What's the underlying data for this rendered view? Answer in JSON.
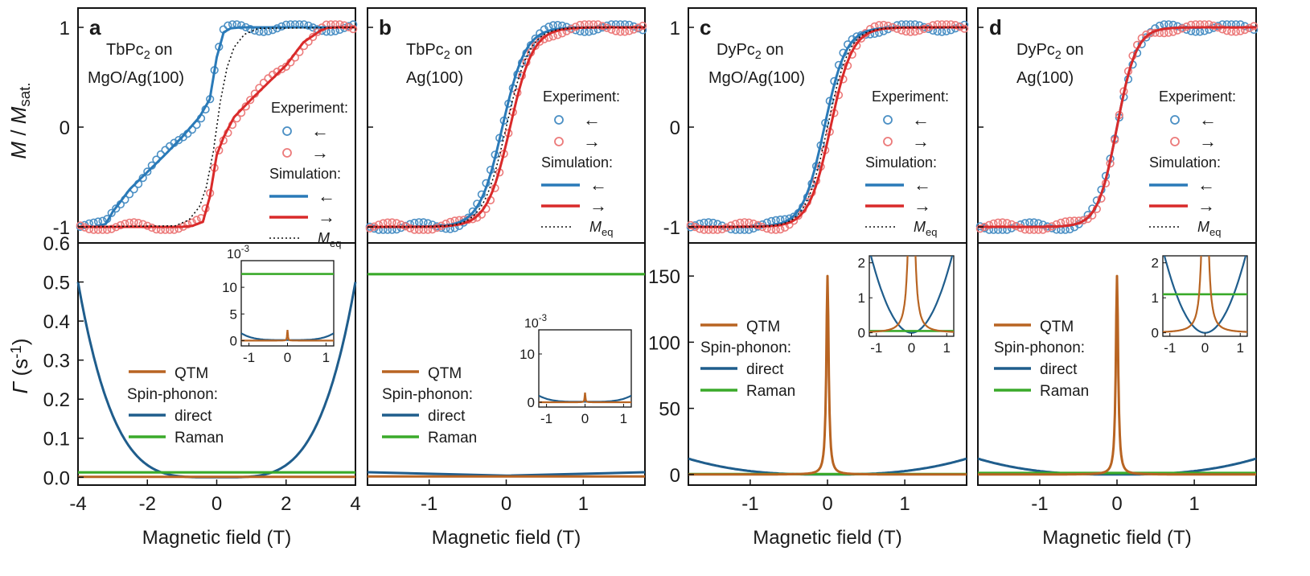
{
  "figure": {
    "xlabel": "Magnetic field (T)",
    "top_ylabel": "M / M",
    "top_ylabel_sub": "sat.",
    "bottom_ylabel": "Γ (s",
    "bottom_ylabel_sup": "-1",
    "bottom_ylabel_end": ")",
    "top_yticks": [
      "1",
      "0",
      "-1"
    ],
    "inset_exponent": "10",
    "inset_exponent_sup": "-3"
  },
  "colors": {
    "blue": "#2a7ab8",
    "red": "#d92a2a",
    "blue_marker": "#4a8fc4",
    "red_marker": "#ec7a7a",
    "qtm": "#b86422",
    "direct": "#1f5d8c",
    "raman": "#3aaa2a",
    "black": "#111111"
  },
  "legend_labels": {
    "experiment": "Experiment:",
    "simulation": "Simulation:",
    "arrow_left": "←",
    "arrow_right": "→",
    "meq": "M",
    "meq_sub": "eq",
    "qtm": "QTM",
    "spin_phonon": "Spin-phonon:",
    "direct": "direct",
    "raman": "Raman"
  },
  "chart_data": [
    {
      "panel": "a",
      "title": "TbPc",
      "title_sub": "2",
      "title_end": " on",
      "title_line2": "MgO/Ag(100)",
      "top": {
        "type": "line",
        "xlim": [
          -4,
          4
        ],
        "ylim": [
          -1.05,
          1.05
        ],
        "series": [
          {
            "name": "Simulation ←",
            "x": [
              -4,
              -3.5,
              -3.2,
              -3.0,
              -2.5,
              -2.0,
              -1.5,
              -1.0,
              -0.5,
              -0.2,
              0.0,
              0.2,
              0.4,
              0.7,
              1.0,
              4.0
            ],
            "y": [
              -1,
              -1,
              -0.97,
              -0.85,
              -0.62,
              -0.45,
              -0.28,
              -0.1,
              0.1,
              0.28,
              0.7,
              0.95,
              0.99,
              1,
              1,
              1
            ]
          },
          {
            "name": "Simulation →",
            "x": [
              -4,
              -1.0,
              -0.7,
              -0.4,
              -0.2,
              0.0,
              0.2,
              0.5,
              1.0,
              1.5,
              2.0,
              2.5,
              3.0,
              3.2,
              3.5,
              4.0
            ],
            "y": [
              -1,
              -1,
              -0.99,
              -0.95,
              -0.7,
              -0.28,
              -0.1,
              0.1,
              0.28,
              0.45,
              0.62,
              0.85,
              0.97,
              0.995,
              1,
              1
            ]
          },
          {
            "name": "M_eq",
            "x": [
              -4,
              -1.2,
              -0.8,
              -0.5,
              -0.3,
              -0.1,
              0.0,
              0.1,
              0.3,
              0.5,
              0.8,
              1.2,
              4.0
            ],
            "y": [
              -1,
              -0.99,
              -0.93,
              -0.8,
              -0.6,
              -0.25,
              0,
              0.25,
              0.6,
              0.8,
              0.93,
              0.99,
              1
            ]
          }
        ],
        "markers": "experiment circles follow the simulation curves"
      },
      "bottom": {
        "type": "line",
        "xlim": [
          -4,
          4
        ],
        "ylim": [
          -0.02,
          0.6
        ],
        "yticks": [
          "0.0",
          "0.1",
          "0.2",
          "0.3",
          "0.4",
          "0.5",
          "0.6"
        ],
        "xticks": [
          "-4",
          "-2",
          "0",
          "2",
          "4"
        ],
        "direct_max": 0.5,
        "raman_level": 0.0125,
        "qtm_level": 0.001,
        "inset": {
          "xlim": [
            -1.2,
            1.2
          ],
          "ylim": [
            -1,
            15
          ],
          "yticks": [
            "0",
            "5",
            "10"
          ],
          "xticks": [
            "-1",
            "0",
            "1"
          ],
          "raman_level": 12.5,
          "qtm_peak": 2
        }
      }
    },
    {
      "panel": "b",
      "title": "TbPc",
      "title_sub": "2",
      "title_end": " on",
      "title_line2": "Ag(100)",
      "top": {
        "type": "line",
        "xlim": [
          -1.8,
          1.8
        ],
        "ylim": [
          -1.05,
          1.05
        ],
        "series": [
          {
            "name": "Simulation ←",
            "width": 0.3,
            "shift": -0.05
          },
          {
            "name": "Simulation →",
            "width": 0.3,
            "shift": 0.05
          },
          {
            "name": "M_eq",
            "width": 0.3,
            "shift": 0
          }
        ]
      },
      "bottom": {
        "type": "line",
        "xlim": [
          -1.8,
          1.8
        ],
        "ylim": [
          -0.02,
          0.6
        ],
        "xticks": [
          "-1",
          "0",
          "1"
        ],
        "raman_level": 0.52,
        "direct_level": 0.01,
        "inset": {
          "xlim": [
            -1.2,
            1.2
          ],
          "ylim": [
            -1,
            15
          ],
          "yticks": [
            "0",
            "10"
          ],
          "xticks": [
            "-1",
            "0",
            "1"
          ],
          "qtm_peak": 2
        }
      }
    },
    {
      "panel": "c",
      "title": "DyPc",
      "title_sub": "2",
      "title_end": " on",
      "title_line2": "MgO/Ag(100)",
      "top": {
        "type": "line",
        "xlim": [
          -1.8,
          1.8
        ],
        "ylim": [
          -1.05,
          1.05
        ],
        "series": [
          {
            "name": "Simulation ←",
            "width": 0.28,
            "shift": -0.04
          },
          {
            "name": "Simulation →",
            "width": 0.28,
            "shift": 0.04
          },
          {
            "name": "M_eq",
            "width": 0.28,
            "shift": 0
          }
        ]
      },
      "bottom": {
        "type": "line",
        "xlim": [
          -1.8,
          1.8
        ],
        "ylim": [
          -8,
          175
        ],
        "yticks": [
          "0",
          "50",
          "100",
          "150"
        ],
        "xticks": [
          "-1",
          "0",
          "1"
        ],
        "qtm_peak": 150,
        "direct_max": 12,
        "raman_level": 0.3,
        "inset": {
          "xlim": [
            -1.2,
            1.2
          ],
          "ylim": [
            -0.1,
            2.2
          ],
          "yticks": [
            "0",
            "1",
            "2"
          ],
          "xticks": [
            "-1",
            "0",
            "1"
          ],
          "raman_level": 0.05,
          "qtm_peak": 10
        }
      }
    },
    {
      "panel": "d",
      "title": "DyPc",
      "title_sub": "2",
      "title_end": " on",
      "title_line2": "Ag(100)",
      "top": {
        "type": "line",
        "xlim": [
          -1.8,
          1.8
        ],
        "ylim": [
          -1.05,
          1.05
        ],
        "series": [
          {
            "name": "Simulation ←",
            "width": 0.25,
            "shift": 0
          },
          {
            "name": "Simulation →",
            "width": 0.25,
            "shift": 0
          }
        ]
      },
      "bottom": {
        "type": "line",
        "xlim": [
          -1.8,
          1.8
        ],
        "ylim": [
          -8,
          175
        ],
        "xticks": [
          "-1",
          "0",
          "1"
        ],
        "qtm_peak": 150,
        "direct_max": 12,
        "raman_level": 1.1,
        "inset": {
          "xlim": [
            -1.2,
            1.2
          ],
          "ylim": [
            -0.1,
            2.2
          ],
          "yticks": [
            "0",
            "1",
            "2"
          ],
          "xticks": [
            "-1",
            "0",
            "1"
          ],
          "raman_level": 1.1,
          "qtm_peak": 10
        }
      }
    }
  ]
}
